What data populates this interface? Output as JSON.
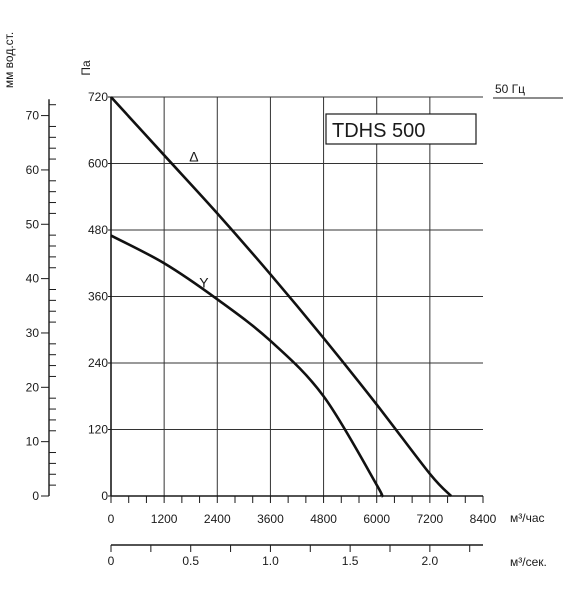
{
  "chart_data": {
    "type": "line",
    "model_label": "TDHS 500",
    "frequency_label": "50 Гц",
    "ylabel_left": "мм вод.ст.",
    "ylabel_pa": "Па",
    "xlabel_flow_h": "м³/час",
    "xlabel_flow_s": "м³/сек.",
    "x_flow_h": {
      "ticks": [
        0,
        1200,
        2400,
        3600,
        4800,
        6000,
        7200,
        8400
      ],
      "lim": [
        0,
        8400
      ]
    },
    "y_pa": {
      "ticks": [
        0,
        120,
        240,
        360,
        480,
        600,
        720
      ],
      "lim": [
        0,
        720
      ]
    },
    "y_mm": {
      "ticks": [
        0,
        10,
        20,
        30,
        40,
        50,
        60,
        70
      ]
    },
    "x_flow_s": {
      "ticks": [
        "0",
        "0.5",
        "1.0",
        "1.5",
        "2.0"
      ]
    },
    "grid": true,
    "series": [
      {
        "name": "Δ",
        "x": [
          0,
          1200,
          2400,
          3600,
          4800,
          6000,
          7200,
          7680
        ],
        "y": [
          720,
          615,
          510,
          400,
          285,
          165,
          40,
          0
        ]
      },
      {
        "name": "Y",
        "x": [
          0,
          1200,
          2400,
          3600,
          4800,
          6000,
          6100
        ],
        "y": [
          470,
          420,
          355,
          280,
          180,
          20,
          0
        ]
      }
    ]
  }
}
